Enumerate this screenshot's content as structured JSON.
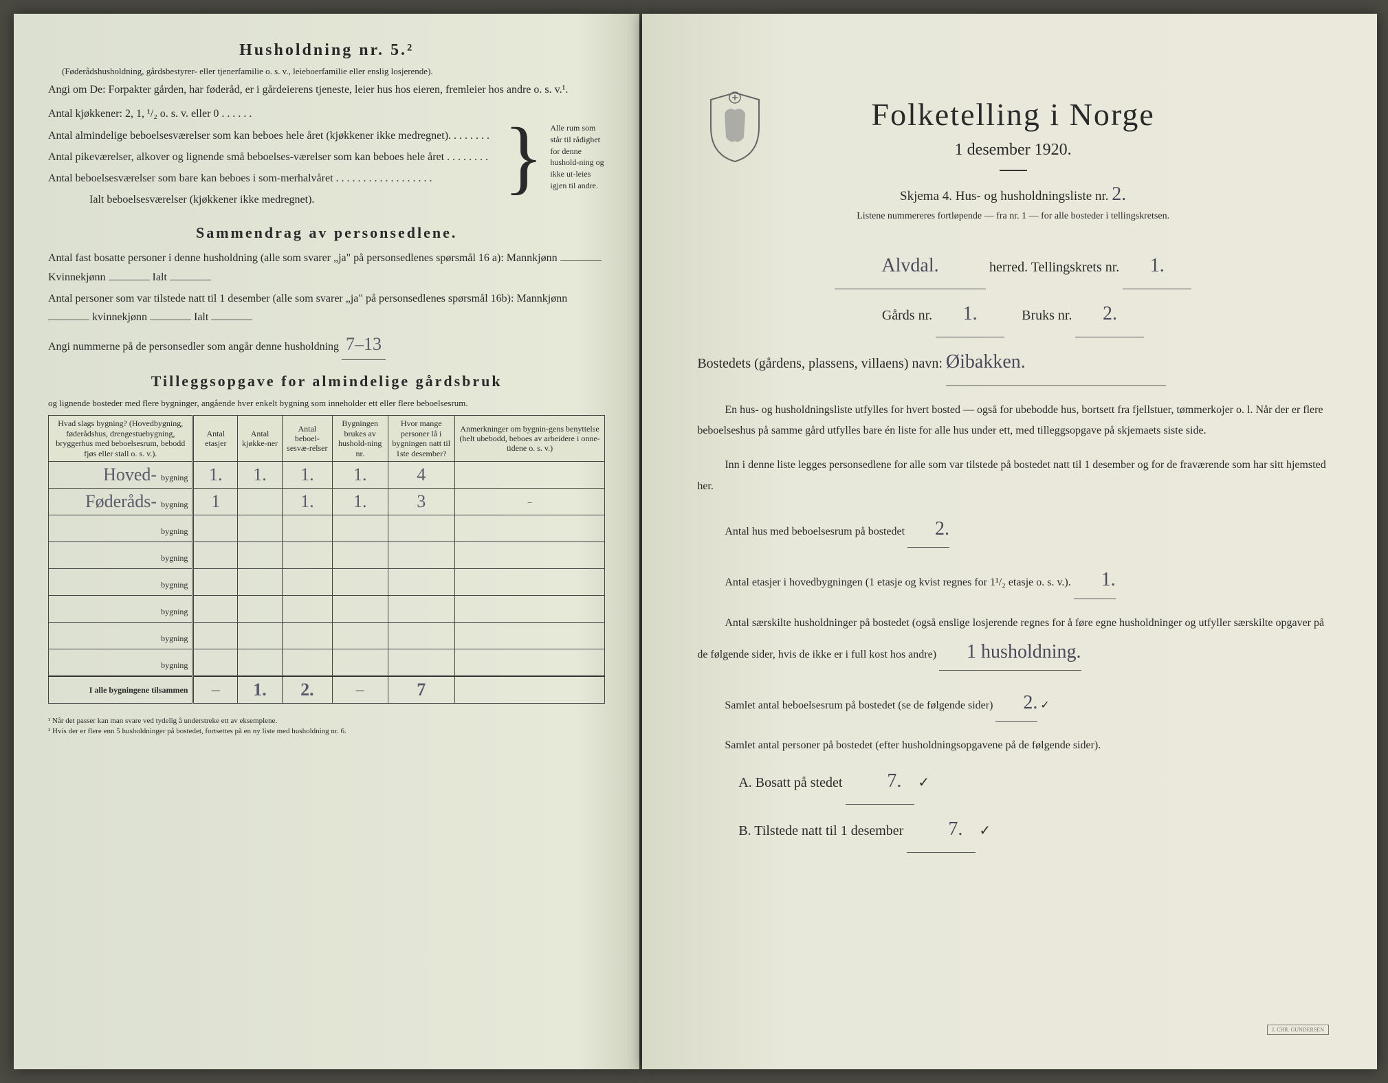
{
  "left": {
    "title": "Husholdning nr. 5.²",
    "sub1": "(Føderådshusholdning, gårdsbestyrer- eller tjenerfamilie o. s. v., leieboerfamilie eller enslig losjerende).",
    "angi": "Angi om De: Forpakter gården, har føderåd, er i gårdeierens tjeneste, leier hus hos eieren, fremleier hos andre o. s. v.¹.",
    "k_kjokken": "Antal kjøkkener: 2, 1, ¹/₂ o. s. v. eller 0 . . . . . .",
    "k_alm": "Antal almindelige beboelsesværelser som kan beboes hele året (kjøkkener ikke medregnet). . . . . . . .",
    "k_pike": "Antal pikeværelser, alkover og lignende små beboelses-værelser som kan beboes hele året . . . . . . . .",
    "k_som": "Antal beboelsesværelser som bare kan beboes i som-merhalvåret . . . . . . . . . . . . . . . . . .",
    "k_ialt": "Ialt beboelsesværelser (kjøkkener ikke medregnet).",
    "brace": "Alle rum som står til rådighet for denne hushold-ning og ikke ut-leies igjen til andre.",
    "sec2_title": "Sammendrag av personsedlene.",
    "sec2_l1": "Antal fast bosatte personer i denne husholdning (alle som svarer „ja\" på personsedlenes spørsmål 16 a): Mannkjønn",
    "sec2_l1b": "Kvinnekjønn",
    "sec2_l1c": "Ialt",
    "sec2_l2": "Antal personer som var tilstede natt til 1 desember (alle som svarer „ja\" på personsedlenes spørsmål 16b): Mannkjønn",
    "sec2_l2b": "kvinnekjønn",
    "sec2_l2c": "Ialt",
    "sec2_l3": "Angi nummerne på de personsedler som angår denne husholdning",
    "sec2_hw": "7–13",
    "sec3_title": "Tilleggsopgave for almindelige gårdsbruk",
    "sec3_sub": "og lignende bosteder med flere bygninger, angående hver enkelt bygning som inneholder ett eller flere beboelsesrum.",
    "table": {
      "headers": {
        "c1": "Hvad slags bygning?\n(Hovedbygning, føderådshus, drengestuebygning, bryggerhus med beboelsesrum, bebodd fjøs eller stall o. s. v.).",
        "c2": "Antal etasjer",
        "c3": "Antal kjøkke-ner",
        "c4": "Antal beboel-sesvæ-relser",
        "c5": "Bygningen brukes av hushold-ning nr.",
        "c6": "Hvor mange personer lå i bygningen natt til 1ste desember?",
        "c7": "Anmerkninger om bygnin-gens benyttelse (helt ubebodd, beboes av arbeidere i onne-tidene o. s. v.)"
      },
      "rows": [
        {
          "name": "Hoved-",
          "suffix": "bygning",
          "c2": "1.",
          "c3": "1.",
          "c4": "1.",
          "c5": "1.",
          "c6": "4",
          "c7": ""
        },
        {
          "name": "Føderåds-",
          "suffix": "bygning",
          "c2": "1",
          "c3": "",
          "c4": "1.",
          "c5": "1.",
          "c6": "3",
          "c7": "–"
        },
        {
          "name": "",
          "suffix": "bygning",
          "c2": "",
          "c3": "",
          "c4": "",
          "c5": "",
          "c6": "",
          "c7": ""
        },
        {
          "name": "",
          "suffix": "bygning",
          "c2": "",
          "c3": "",
          "c4": "",
          "c5": "",
          "c6": "",
          "c7": ""
        },
        {
          "name": "",
          "suffix": "bygning",
          "c2": "",
          "c3": "",
          "c4": "",
          "c5": "",
          "c6": "",
          "c7": ""
        },
        {
          "name": "",
          "suffix": "bygning",
          "c2": "",
          "c3": "",
          "c4": "",
          "c5": "",
          "c6": "",
          "c7": ""
        },
        {
          "name": "",
          "suffix": "bygning",
          "c2": "",
          "c3": "",
          "c4": "",
          "c5": "",
          "c6": "",
          "c7": ""
        },
        {
          "name": "",
          "suffix": "bygning",
          "c2": "",
          "c3": "",
          "c4": "",
          "c5": "",
          "c6": "",
          "c7": ""
        }
      ],
      "total": {
        "label": "I alle bygningene tilsammen",
        "c2": "—",
        "c3": "1.",
        "c4": "2.",
        "c5": "—",
        "c6": "7",
        "c7": ""
      }
    },
    "footnotes": {
      "f1": "¹ Når det passer kan man svare ved tydelig å understreke ett av eksemplene.",
      "f2": "² Hvis der er flere enn 5 husholdninger på bostedet, fortsettes på en ny liste med husholdning nr. 6."
    }
  },
  "right": {
    "title": "Folketelling i Norge",
    "date": "1 desember 1920.",
    "skjema": "Skjema 4.  Hus- og husholdningsliste nr.",
    "skjema_nr": "2.",
    "subnote": "Listene nummereres fortløpende — fra nr. 1 — for alle bosteder i tellingskretsen.",
    "herred_hw": "Alvdal.",
    "herred_label": "herred.   Tellingskrets nr.",
    "krets_nr": "1.",
    "gards_label": "Gårds nr.",
    "gards_nr": "1.",
    "bruks_label": "Bruks nr.",
    "bruks_nr": "2.",
    "bosted_label": "Bostedets (gårdens, plassens, villaens) navn:",
    "bosted_hw": "Øibakken.",
    "para1": "En hus- og husholdningsliste utfylles for hvert bosted — også for ubebodde hus, bortsett fra fjellstuer, tømmerkojer o. l. Når der er flere beboelseshus på samme gård utfylles bare én liste for alle hus under ett, med tilleggsopgave på skjemaets siste side.",
    "para2": "Inn i denne liste legges personsedlene for alle som var tilstede på bostedet natt til 1 desember og for de fraværende som har sitt hjemsted her.",
    "q_hus": "Antal hus med beboelsesrum på bostedet",
    "q_hus_hw": "2.",
    "q_etasjer": "Antal etasjer i hovedbygningen (1 etasje og kvist regnes for 1¹/₂ etasje o. s. v.).",
    "q_etasjer_hw": "1.",
    "q_hush": "Antal særskilte husholdninger på bostedet (også enslige losjerende regnes for å føre egne husholdninger og utfyller særskilte opgaver på de følgende sider, hvis de ikke er i full kost hos andre)",
    "q_hush_hw": "1 husholdning.",
    "q_samlet_rum": "Samlet antal beboelsesrum på bostedet (se de følgende sider)",
    "q_samlet_rum_hw": "2.",
    "q_samlet_pers": "Samlet antal personer på bostedet (efter husholdningsopgavene på de følgende sider).",
    "q_a": "A.  Bosatt på stedet",
    "q_a_hw": "7.",
    "q_b": "B.  Tilstede natt til 1 desember",
    "q_b_hw": "7.",
    "stamp": "J. CHR. GUNDERSEN"
  }
}
